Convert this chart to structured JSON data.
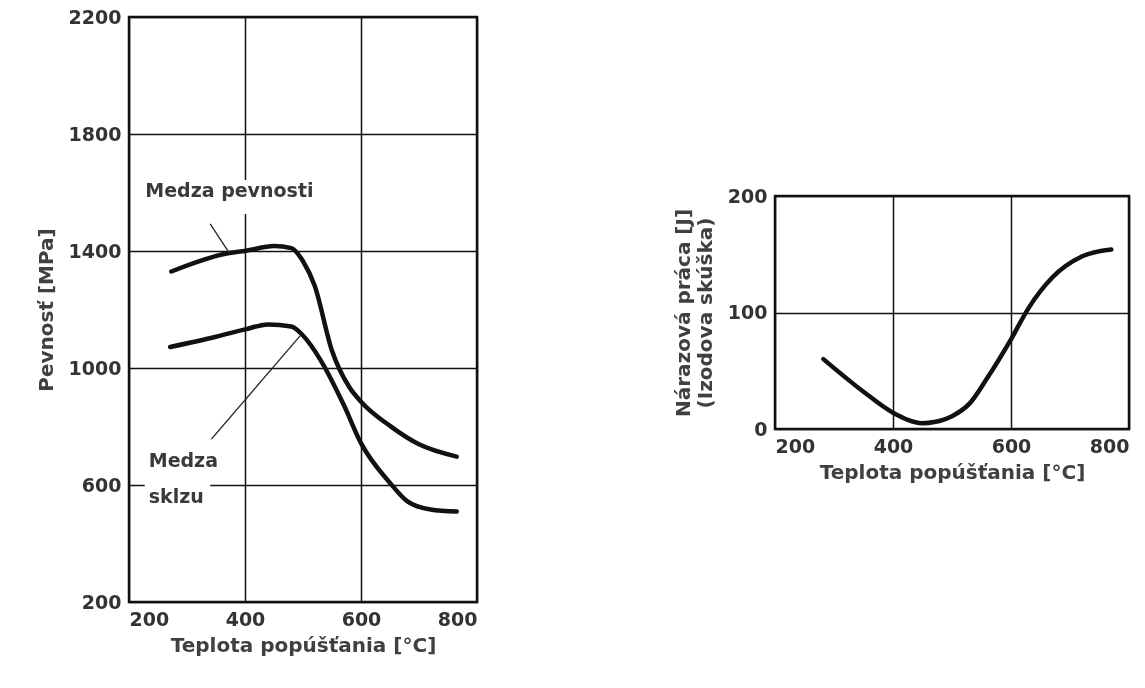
{
  "chart_data": [
    {
      "type": "line",
      "xlabel": "Teplota popúšťania [°C]",
      "ylabel": "Pevnosť [MPa]",
      "xlim": [
        200,
        800
      ],
      "ylim": [
        200,
        2200
      ],
      "xticks": [
        200,
        400,
        600,
        800
      ],
      "yticks": [
        200,
        600,
        1000,
        1400,
        1800,
        2200
      ],
      "grid": true,
      "series": [
        {
          "color": "#111111",
          "x": [
            273,
            373,
            400,
            450,
            480,
            500,
            520,
            550,
            580,
            600,
            650,
            700,
            765
          ],
          "values": [
            1330,
            1393,
            1400,
            1417,
            1410,
            1365,
            1282,
            1059,
            934,
            885,
            802,
            739,
            697
          ]
        },
        {
          "color": "#111111",
          "x": [
            271,
            350,
            400,
            440,
            480,
            500,
            530,
            570,
            600,
            650,
            680,
            720,
            765
          ],
          "values": [
            1072,
            1107,
            1132,
            1149,
            1142,
            1111,
            1028,
            875,
            743,
            607,
            544,
            516,
            509
          ]
        }
      ],
      "annotations": [
        {
          "text": "Medza pevnosti",
          "x": 373,
          "y": 1393
        },
        {
          "text": "Medza\nsklzu",
          "x": 495,
          "y": 1110
        }
      ]
    },
    {
      "type": "line",
      "xlabel": "Teplota popúšťania [°C]",
      "ylabel": "Nárazová práca [J]\n(Izodova skúška)",
      "xlim": [
        200,
        800
      ],
      "ylim": [
        0,
        200
      ],
      "xticks": [
        200,
        400,
        600,
        800
      ],
      "yticks": [
        0,
        100,
        200
      ],
      "grid": true,
      "series": [
        {
          "color": "#111111",
          "x": [
            282,
            350,
            400,
            450,
            470,
            500,
            530,
            560,
            600,
            630,
            670,
            720,
            770
          ],
          "values": [
            60,
            32,
            14,
            5,
            6,
            11,
            22,
            44,
            77,
            104,
            130,
            148,
            154
          ]
        }
      ]
    }
  ]
}
